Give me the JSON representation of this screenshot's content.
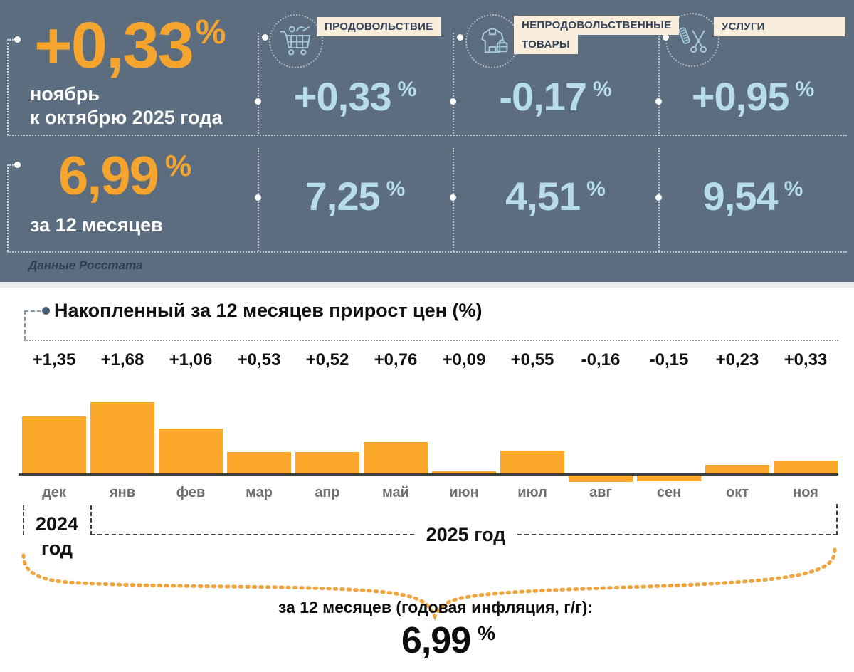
{
  "panel": {
    "monthly": {
      "value": "+0,33",
      "label_line1": "ноябрь",
      "label_line2": "к октябрю 2025 года"
    },
    "annual": {
      "value": "6,99",
      "label": "за 12 месяцев"
    },
    "percent_sign": "%",
    "source": "Данные Росстата",
    "categories": [
      {
        "icon": "cart-icon",
        "label_lines": [
          "ПРОДОВОЛЬСТВИЕ"
        ],
        "monthly": "+0,33",
        "annual": "7,25"
      },
      {
        "icon": "clothing-bag-icon",
        "label_lines": [
          "НЕПРОДОВОЛЬСТВЕННЫЕ",
          "ТОВАРЫ"
        ],
        "monthly": "-0,17",
        "annual": "4,51"
      },
      {
        "icon": "scissors-comb-icon",
        "label_lines": [
          "УСЛУГИ"
        ],
        "monthly": "+0,95",
        "annual": "9,54"
      }
    ]
  },
  "chart_data": {
    "type": "bar",
    "title": "Накопленный за 12 месяцев прирост цен (%)",
    "categories": [
      "дек",
      "янв",
      "фев",
      "мар",
      "апр",
      "май",
      "июн",
      "июл",
      "авг",
      "сен",
      "окт",
      "ноя"
    ],
    "values": [
      1.35,
      1.68,
      1.06,
      0.53,
      0.52,
      0.76,
      0.09,
      0.55,
      -0.16,
      -0.15,
      0.23,
      0.33
    ],
    "value_labels": [
      "+1,35",
      "+1,68",
      "+1,06",
      "+0,53",
      "+0,52",
      "+0,76",
      "+0,09",
      "+0,55",
      "-0,16",
      "-0,15",
      "+0,23",
      "+0,33"
    ],
    "bar_color": "#FBA82C",
    "ylim": [
      -0.3,
      1.8
    ],
    "grid": false,
    "legend": "none"
  },
  "years": {
    "left_line1": "2024",
    "left_line2": "год",
    "right": "2025 год"
  },
  "footer": {
    "label": "за 12 месяцев (годовая инфляция, г/г):",
    "value": "6,99"
  },
  "colors": {
    "panel_bg": "#5C6D80",
    "orange": "#F5A42E",
    "bar_orange": "#FBA82C",
    "light_blue": "#B7DCEB",
    "cream_label": "#F9EEDB",
    "navy_label_text": "#33425B",
    "brace_orange": "#EFA43E"
  }
}
